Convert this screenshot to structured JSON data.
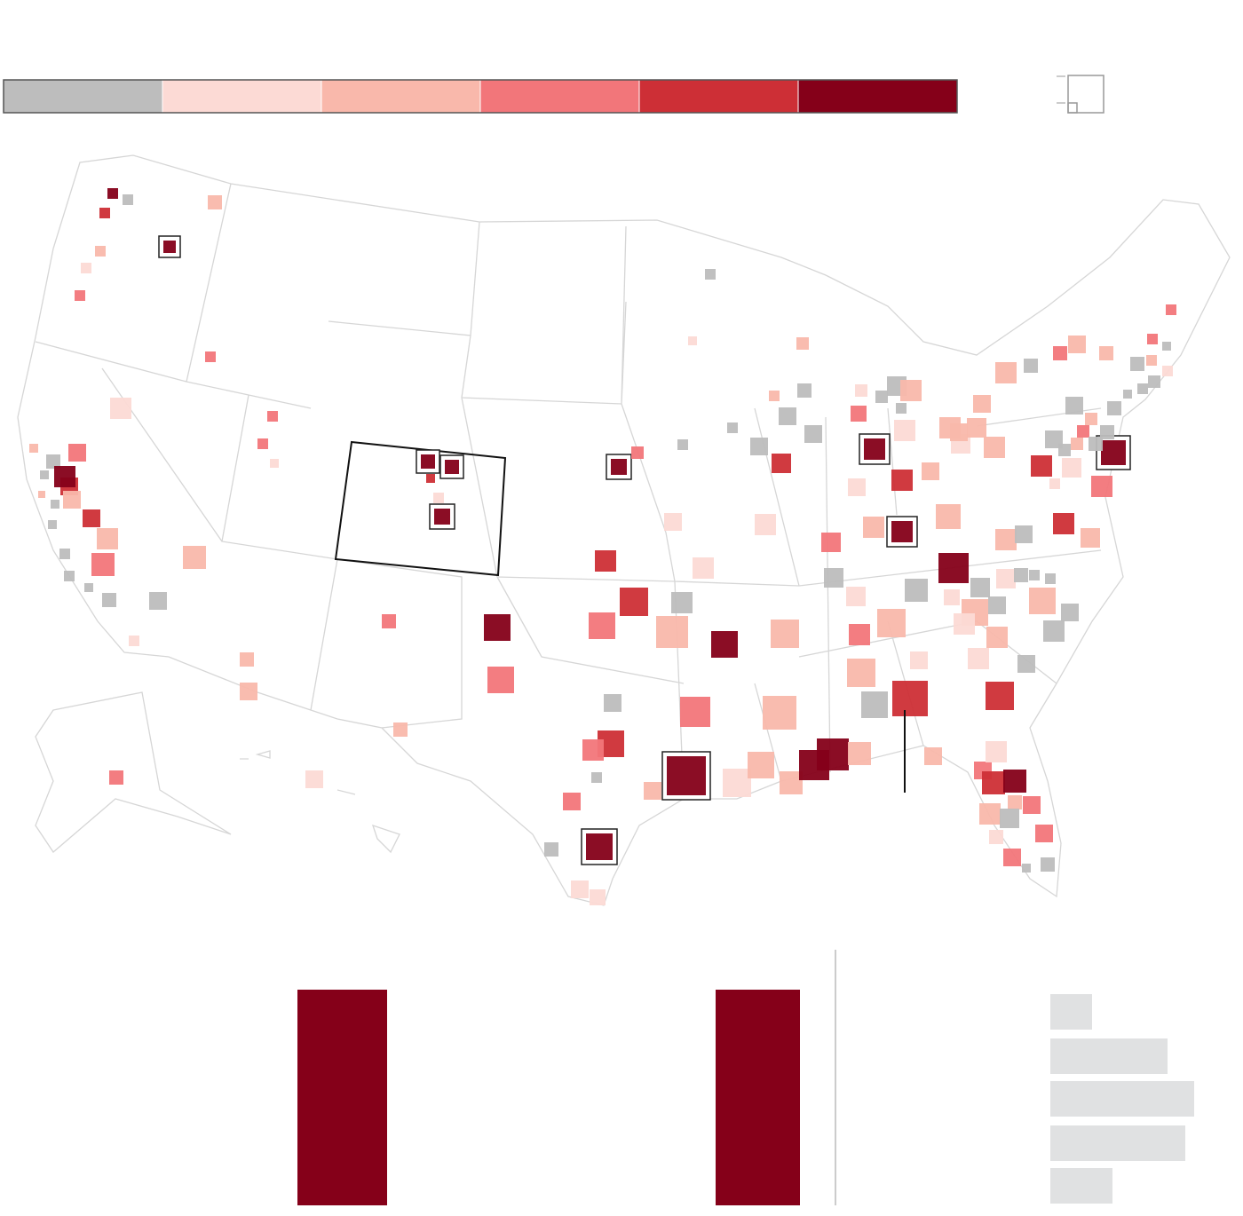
{
  "legend": {
    "colors": [
      "#bdbdbd",
      "#fcdad5",
      "#f9b8ab",
      "#f2767a",
      "#cd2f36",
      "#850019"
    ]
  }
}
